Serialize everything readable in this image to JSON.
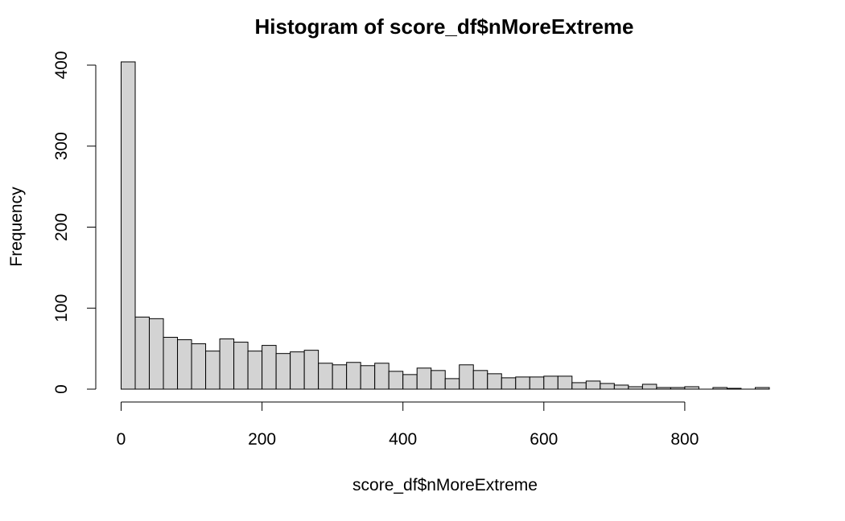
{
  "chart_data": {
    "type": "bar",
    "title": "Histogram of score_df$nMoreExtreme",
    "xlabel": "score_df$nMoreExtreme",
    "ylabel": "Frequency",
    "xlim": [
      0,
      920
    ],
    "ylim": [
      0,
      400
    ],
    "x_ticks": [
      "0",
      "200",
      "400",
      "600",
      "800"
    ],
    "y_ticks": [
      "0",
      "100",
      "200",
      "300",
      "400"
    ],
    "bin_width": 20,
    "bin_starts": [
      0,
      20,
      40,
      60,
      80,
      100,
      120,
      140,
      160,
      180,
      200,
      220,
      240,
      260,
      280,
      300,
      320,
      340,
      360,
      380,
      400,
      420,
      440,
      460,
      480,
      500,
      520,
      540,
      560,
      580,
      600,
      620,
      640,
      660,
      680,
      700,
      720,
      740,
      760,
      780,
      800,
      820,
      840,
      860,
      880,
      900
    ],
    "values": [
      404,
      89,
      87,
      64,
      61,
      56,
      47,
      62,
      58,
      47,
      54,
      44,
      46,
      48,
      32,
      30,
      33,
      29,
      32,
      22,
      18,
      26,
      23,
      13,
      30,
      23,
      19,
      14,
      15,
      15,
      16,
      16,
      8,
      10,
      7,
      5,
      3,
      6,
      2,
      2,
      3,
      0,
      2,
      1,
      0,
      2
    ],
    "bar_color": "#d3d3d3",
    "grid": false,
    "legend": "none"
  }
}
